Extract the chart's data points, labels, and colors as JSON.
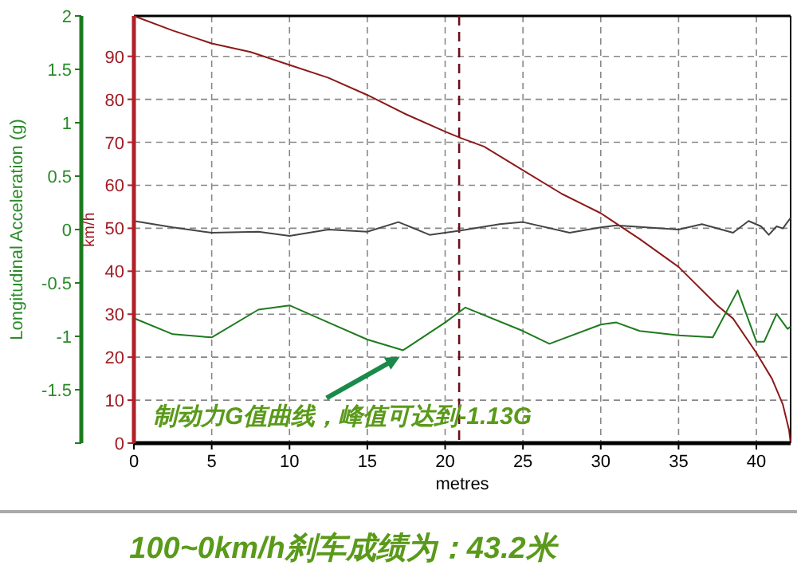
{
  "chart_data": {
    "type": "line",
    "xlabel": "metres",
    "ylabel": "Longitudinal Acceleration (g)",
    "y2label": "km/h",
    "xlim": [
      0,
      42.2
    ],
    "xticks": [
      0,
      5,
      10,
      15,
      20,
      25,
      30,
      35,
      40
    ],
    "ylim": [
      -2,
      2
    ],
    "yticks": [
      {
        "value": -2,
        "label": null
      },
      -1.5,
      -1,
      -0.5,
      0,
      0.5,
      1,
      1.5,
      2
    ],
    "y2lim": [
      0,
      99.4
    ],
    "y2ticks": [
      0,
      10,
      20,
      30,
      40,
      50,
      60,
      70,
      80,
      90
    ],
    "grid": true,
    "line_style": "solid",
    "marker": "none",
    "series": [
      {
        "color": "#8b1a1a",
        "axis": "y2",
        "x": [
          0,
          2.5,
          5,
          7.5,
          10,
          12.5,
          15,
          17.5,
          20,
          21,
          22.5,
          25,
          27.5,
          30,
          32.5,
          35,
          37.5,
          38.5,
          40,
          41,
          41.7,
          42.1,
          42.2
        ],
        "values": [
          99.4,
          96,
          93,
          91,
          88,
          85,
          81,
          76.5,
          72.5,
          71,
          69,
          63.5,
          58,
          53.5,
          47.5,
          41,
          32,
          29,
          21,
          15,
          9,
          3,
          0
        ]
      },
      {
        "color": "#444444",
        "axis": "y",
        "x": [
          0,
          2.5,
          5,
          8,
          10,
          12.5,
          15,
          17,
          19,
          21,
          23.5,
          25,
          28,
          30,
          31,
          35,
          36.5,
          38.5,
          39.5,
          40.3,
          40.8,
          41.3,
          41.7,
          42.2
        ],
        "values": [
          0.08,
          0.02,
          -0.03,
          -0.02,
          -0.06,
          0,
          -0.02,
          0.07,
          -0.05,
          -0.01,
          0.05,
          0.07,
          -0.03,
          0.02,
          0.04,
          0,
          0.05,
          -0.03,
          0.08,
          0.03,
          -0.05,
          0.03,
          0.01,
          0.11
        ]
      },
      {
        "color": "#1e7a1e",
        "axis": "y",
        "x": [
          0,
          2.5,
          5,
          8,
          10,
          12.5,
          15,
          17.3,
          20,
          21.3,
          25,
          26.7,
          30,
          31,
          32.5,
          35,
          37.2,
          38.8,
          40,
          40.5,
          41.3,
          42,
          42.2
        ],
        "values": [
          -0.83,
          -0.98,
          -1.01,
          -0.75,
          -0.71,
          -0.87,
          -1.03,
          -1.13,
          -0.87,
          -0.73,
          -0.95,
          -1.07,
          -0.89,
          -0.87,
          -0.95,
          -0.99,
          -1.01,
          -0.57,
          -1.05,
          -1.05,
          -0.79,
          -0.93,
          -0.91
        ]
      }
    ],
    "ref_lines": [
      {
        "axis": "x",
        "value": 20.9,
        "color": "#6b0f1a",
        "line_style": "dashed"
      }
    ],
    "annotations": [
      {
        "text": "制动力G值曲线，峰值可达到-1.13G",
        "x": 17.3,
        "y": -1.13
      },
      "100~0km/h刹车成绩为：43.2米"
    ]
  }
}
